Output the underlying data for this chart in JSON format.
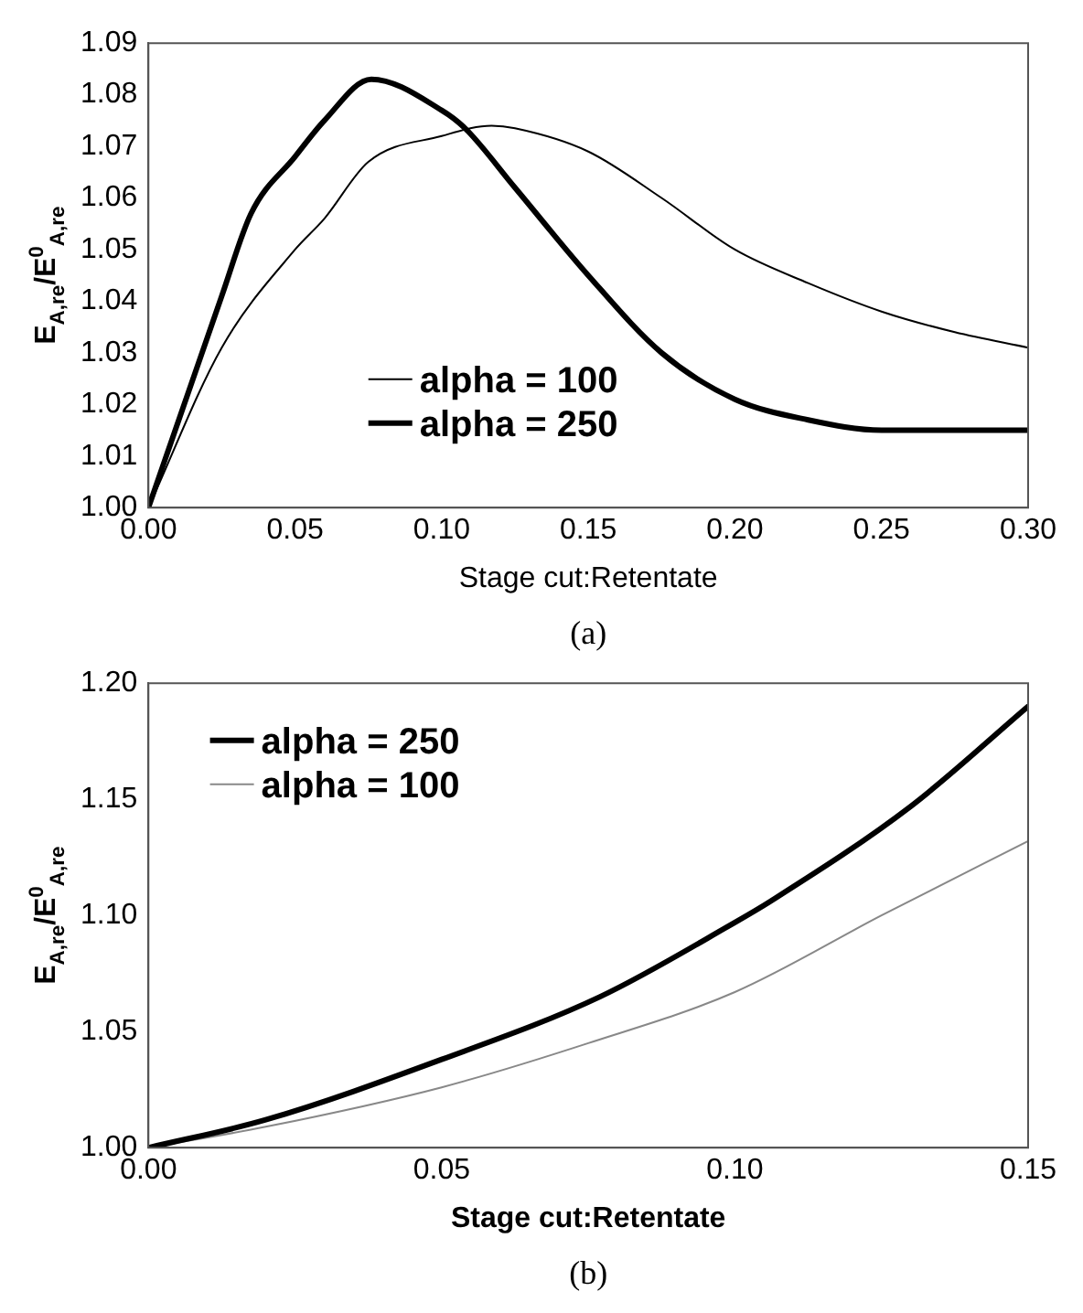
{
  "chart_data": [
    {
      "type": "line",
      "xlabel": "Stage cut:Retentate",
      "ylabel": "E$_{A,re}$/E$^{0}$$_{A,re}$",
      "annotations": [
        "(a)"
      ],
      "xlim": [
        0,
        0.3
      ],
      "xticks": [
        {
          "value": 0,
          "label": "0.00"
        },
        {
          "value": 0.05,
          "label": "0.05"
        },
        {
          "value": 0.1,
          "label": "0.10"
        },
        {
          "value": 0.15,
          "label": "0.15"
        },
        {
          "value": 0.2,
          "label": "0.20"
        },
        {
          "value": 0.25,
          "label": "0.25"
        },
        {
          "value": 0.3,
          "label": "0.30"
        }
      ],
      "ylim": [
        1,
        1.09
      ],
      "yticks": [
        {
          "value": 1,
          "label": "1.00"
        },
        {
          "value": 1.01,
          "label": "1.01"
        },
        {
          "value": 1.02,
          "label": "1.02"
        },
        {
          "value": 1.03,
          "label": "1.03"
        },
        {
          "value": 1.04,
          "label": "1.04"
        },
        {
          "value": 1.05,
          "label": "1.05"
        },
        {
          "value": 1.06,
          "label": "1.06"
        },
        {
          "value": 1.07,
          "label": "1.07"
        },
        {
          "value": 1.08,
          "label": "1.08"
        },
        {
          "value": 1.09,
          "label": "1.09"
        }
      ],
      "grid": false,
      "legend": "bottom",
      "marker": "none",
      "series": [
        {
          "name": "alpha = 100",
          "color": "#000000",
          "x": [
            0,
            0.025,
            0.05,
            0.06,
            0.075,
            0.1,
            0.117,
            0.125,
            0.15,
            0.175,
            0.2,
            0.225,
            0.25,
            0.275,
            0.3
          ],
          "values": [
            1,
            1.031,
            1.05,
            1.056,
            1.067,
            1.072,
            1.074,
            1.0735,
            1.069,
            1.06,
            1.05,
            1.0435,
            1.038,
            1.034,
            1.031
          ]
        },
        {
          "name": "alpha = 250",
          "color": "#000000",
          "x": [
            0,
            0.025,
            0.035,
            0.05,
            0.06,
            0.076,
            0.1,
            0.108,
            0.125,
            0.15,
            0.175,
            0.2,
            0.225,
            0.25,
            0.3
          ],
          "values": [
            1,
            1.041,
            1.057,
            1.068,
            1.075,
            1.083,
            1.077,
            1.0735,
            1.062,
            1.045,
            1.03,
            1.021,
            1.017,
            1.015,
            1.015
          ]
        }
      ]
    },
    {
      "type": "line",
      "xlabel": "Stage cut:Retentate",
      "ylabel": "E$_{A,re}$/E$^{0}$$_{A,re}$",
      "annotations": [
        "(b)"
      ],
      "xlim": [
        0,
        0.15
      ],
      "xticks": [
        {
          "value": 0,
          "label": "0.00"
        },
        {
          "value": 0.05,
          "label": "0.05"
        },
        {
          "value": 0.1,
          "label": "0.10"
        },
        {
          "value": 0.15,
          "label": "0.15"
        }
      ],
      "ylim": [
        1,
        1.2
      ],
      "yticks": [
        {
          "value": 1,
          "label": "1.00"
        },
        {
          "value": 1.05,
          "label": "1.05"
        },
        {
          "value": 1.1,
          "label": "1.10"
        },
        {
          "value": 1.15,
          "label": "1.15"
        },
        {
          "value": 1.2,
          "label": "1.20"
        }
      ],
      "grid": false,
      "legend": "top left",
      "marker": "none",
      "series": [
        {
          "name": "alpha = 250",
          "color": "#000000",
          "x": [
            0,
            0.02,
            0.05,
            0.077,
            0.1,
            0.106,
            0.13,
            0.15
          ],
          "values": [
            1,
            1.012,
            1.038,
            1.065,
            1.097,
            1.106,
            1.147,
            1.19
          ]
        },
        {
          "name": "alpha = 100",
          "color": "#888888",
          "x": [
            0,
            0.02,
            0.05,
            0.075,
            0.1,
            0.125,
            0.15
          ],
          "values": [
            1,
            1.009,
            1.026,
            1.045,
            1.067,
            1.1,
            1.132
          ]
        }
      ]
    }
  ]
}
